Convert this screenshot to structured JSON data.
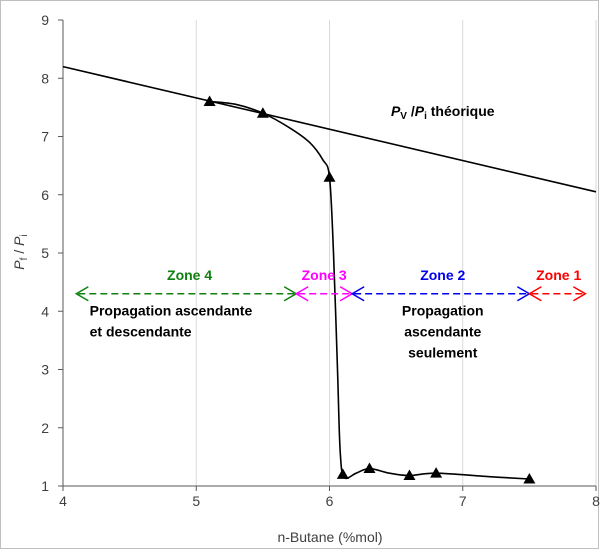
{
  "chart_data": {
    "type": "scatter",
    "xlabel": "n-Butane (%mol)",
    "ylabel": {
      "main": "P",
      "sub_f": "f",
      "sep": " / ",
      "main2": "P",
      "sub_i": "i"
    },
    "xlim": [
      4,
      8
    ],
    "ylim": [
      1,
      9
    ],
    "x_ticks": [
      "4",
      "5",
      "6",
      "7",
      "8"
    ],
    "y_ticks": [
      "1",
      "2",
      "3",
      "4",
      "5",
      "6",
      "7",
      "8",
      "9"
    ],
    "grid": "vertical",
    "series": [
      {
        "marker": "triangle",
        "color": "#000000",
        "points": [
          {
            "x": 5.1,
            "y": 7.6
          },
          {
            "x": 5.5,
            "y": 7.4
          },
          {
            "x": 6.0,
            "y": 6.3
          },
          {
            "x": 6.1,
            "y": 1.2
          },
          {
            "x": 6.3,
            "y": 1.3
          },
          {
            "x": 6.6,
            "y": 1.18
          },
          {
            "x": 6.8,
            "y": 1.22
          },
          {
            "x": 7.5,
            "y": 1.12
          }
        ]
      }
    ],
    "fit_curve": [
      {
        "x": 5.1,
        "y": 7.6
      },
      {
        "x": 5.3,
        "y": 7.55
      },
      {
        "x": 5.5,
        "y": 7.4
      },
      {
        "x": 5.7,
        "y": 7.15
      },
      {
        "x": 5.85,
        "y": 6.9
      },
      {
        "x": 5.95,
        "y": 6.6
      },
      {
        "x": 6.0,
        "y": 6.3
      },
      {
        "x": 6.03,
        "y": 5.0
      },
      {
        "x": 6.06,
        "y": 3.0
      },
      {
        "x": 6.08,
        "y": 1.6
      },
      {
        "x": 6.11,
        "y": 1.15
      },
      {
        "x": 6.2,
        "y": 1.22
      },
      {
        "x": 6.3,
        "y": 1.3
      },
      {
        "x": 6.45,
        "y": 1.22
      },
      {
        "x": 6.6,
        "y": 1.18
      },
      {
        "x": 6.8,
        "y": 1.22
      },
      {
        "x": 7.2,
        "y": 1.16
      },
      {
        "x": 7.5,
        "y": 1.12
      }
    ],
    "theory_line": {
      "label_main": "P",
      "label_sub_v": "V",
      "label_sep": " /",
      "label_main2": "P",
      "label_sub_i": "i",
      "label_suffix": " théorique",
      "label_pos": {
        "x": 6.85,
        "y": 7.35
      },
      "from": {
        "x": 4,
        "y": 8.2
      },
      "to": {
        "x": 8,
        "y": 6.05
      }
    },
    "zones": [
      {
        "label": "Zone 4",
        "from": 4.1,
        "to": 5.75,
        "y": 4.3,
        "color": "#108010",
        "label_x": 4.95
      },
      {
        "label": "Zone 3",
        "from": 5.75,
        "to": 6.17,
        "y": 4.3,
        "color": "#ff00ff",
        "label_x": 5.96
      },
      {
        "label": "Zone 2",
        "from": 6.17,
        "to": 7.5,
        "y": 4.3,
        "color": "#0000ee",
        "label_x": 6.85
      },
      {
        "label": "Zone 1",
        "from": 7.5,
        "to": 7.92,
        "y": 4.3,
        "color": "#ff0000",
        "label_x": 7.72
      }
    ],
    "annotations": [
      {
        "lines": [
          "Propagation ascendante",
          "et descendante"
        ],
        "x": 4.2,
        "y": 3.93,
        "anchor": "start"
      },
      {
        "lines": [
          "Propagation",
          "ascendante",
          "seulement"
        ],
        "x": 6.85,
        "y": 3.93,
        "anchor": "middle"
      }
    ]
  }
}
